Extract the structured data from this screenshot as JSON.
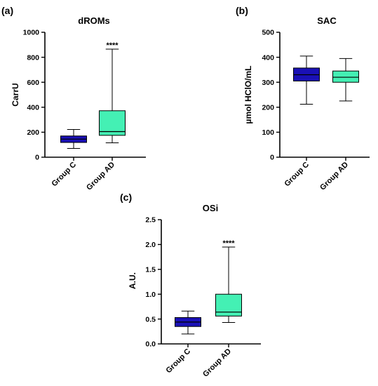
{
  "colors": {
    "group_c": "#1a10b6",
    "group_ad": "#44f0b4",
    "axis": "#000000"
  },
  "chart_data": [
    {
      "type": "box",
      "panel_label": "(a)",
      "title": "dROMs",
      "ylabel": "CarrU",
      "xlabel": "",
      "ylim": [
        0,
        1000
      ],
      "yticks": [
        "0",
        "200",
        "400",
        "600",
        "800",
        "1000"
      ],
      "ytick_values": [
        0,
        200,
        400,
        600,
        800,
        1000
      ],
      "categories": [
        "Group C",
        "Group AD"
      ],
      "boxes": [
        {
          "category": "Group C",
          "min": 70,
          "q1": 118,
          "median": 145,
          "q3": 170,
          "max": 222
        },
        {
          "category": "Group AD",
          "min": 115,
          "q1": 175,
          "median": 205,
          "q3": 372,
          "max": 865
        }
      ],
      "annotations": [
        {
          "category": "Group AD",
          "text": "****"
        }
      ]
    },
    {
      "type": "box",
      "panel_label": "(b)",
      "title": "SAC",
      "ylabel": "µmol HClO/mL",
      "xlabel": "",
      "ylim": [
        0,
        500
      ],
      "yticks": [
        "0",
        "100",
        "200",
        "300",
        "400",
        "500"
      ],
      "ytick_values": [
        0,
        100,
        200,
        300,
        400,
        500
      ],
      "categories": [
        "Group C",
        "Group AD"
      ],
      "boxes": [
        {
          "category": "Group C",
          "min": 212,
          "q1": 305,
          "median": 330,
          "q3": 357,
          "max": 405
        },
        {
          "category": "Group AD",
          "min": 225,
          "q1": 300,
          "median": 320,
          "q3": 345,
          "max": 395
        }
      ],
      "annotations": []
    },
    {
      "type": "box",
      "panel_label": "(c)",
      "title": "OSi",
      "ylabel": "A.U.",
      "xlabel": "",
      "ylim": [
        0,
        2.5
      ],
      "yticks": [
        "0.0",
        "0.5",
        "1.0",
        "1.5",
        "2.0",
        "2.5"
      ],
      "ytick_values": [
        0,
        0.5,
        1.0,
        1.5,
        2.0,
        2.5
      ],
      "categories": [
        "Group C",
        "Group AD"
      ],
      "boxes": [
        {
          "category": "Group C",
          "min": 0.2,
          "q1": 0.35,
          "median": 0.44,
          "q3": 0.53,
          "max": 0.66
        },
        {
          "category": "Group AD",
          "min": 0.43,
          "q1": 0.56,
          "median": 0.64,
          "q3": 1.0,
          "max": 1.95
        }
      ],
      "annotations": [
        {
          "category": "Group AD",
          "text": "****"
        }
      ]
    }
  ]
}
